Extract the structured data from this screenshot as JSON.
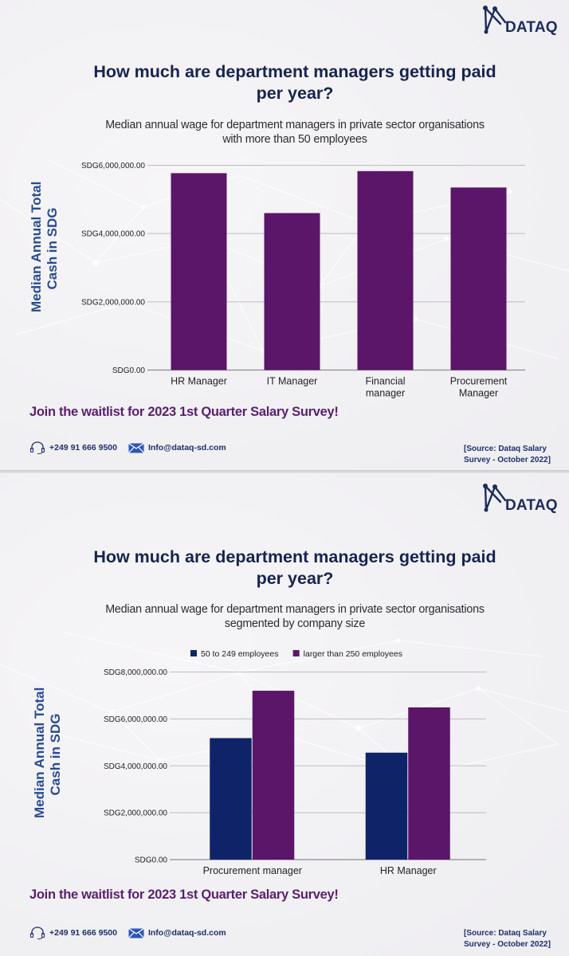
{
  "brand": {
    "logo_text": "DATAQ"
  },
  "panels": [
    {
      "title": "How much are department managers getting paid per year?",
      "subtitle": "Median annual wage for department managers in private sector organisations with more than 50 employees",
      "y_axis_label_line1": "Median Annual Total",
      "y_axis_label_line2": "Cash in SDG",
      "cta": "Join the waitlist for 2023 1st Quarter Salary Survey!",
      "phone": "+249 91 666 9500",
      "email": "Info@dataq-sd.com",
      "source_line1": "[Source: Dataq Salary",
      "source_line2": "Survey - October 2022]"
    },
    {
      "title": "How much are department managers getting paid per year?",
      "subtitle": "Median annual wage for department managers in private sector organisations segmented by company size",
      "y_axis_label_line1": "Median Annual Total",
      "y_axis_label_line2": "Cash in SDG",
      "cta": "Join the waitlist for 2023 1st Quarter Salary Survey!",
      "phone": "+249 91 666 9500",
      "email": "Info@dataq-sd.com",
      "source_line1": "[Source: Dataq Salary",
      "source_line2": "Survey - October 2022]"
    }
  ],
  "colors": {
    "purple": "#5b1569",
    "navy": "#0f2468",
    "title": "#16244f",
    "axis_label": "#2a4b91",
    "cta": "#5a1f6e",
    "grid": "#bdbdc2"
  },
  "chart_data": [
    {
      "type": "bar",
      "title": "How much are department managers getting paid per year?",
      "subtitle": "Median annual wage for department managers in private sector organisations with more than 50 employees",
      "xlabel": "",
      "ylabel": "Median Annual Total Cash in SDG",
      "categories": [
        [
          "HR Manager"
        ],
        [
          "IT Manager"
        ],
        [
          "Financial",
          "manager"
        ],
        [
          "Procurement",
          "Manager"
        ]
      ],
      "values": [
        5770000,
        4600000,
        5830000,
        5350000
      ],
      "ylim": [
        0,
        6000000
      ],
      "yticks": [
        0,
        2000000,
        4000000,
        6000000
      ],
      "ytick_labels": [
        "SDG0.00",
        "SDG2,000,000.00",
        "SDG4,000,000.00",
        "SDG6,000,000.00"
      ],
      "grid": true,
      "legend": null
    },
    {
      "type": "bar",
      "title": "How much are department managers getting paid per year?",
      "subtitle": "Median annual wage for department managers in private sector organisations segmented by company size",
      "xlabel": "",
      "ylabel": "Median Annual Total Cash in SDG",
      "categories": [
        [
          "Procurement manager"
        ],
        [
          "HR Manager"
        ]
      ],
      "series": [
        {
          "name": "50 to 249 employees",
          "color": "#0f2468",
          "values": [
            5180000,
            4560000
          ]
        },
        {
          "name": "larger than 250 employees",
          "color": "#5b1569",
          "values": [
            7200000,
            6490000
          ]
        }
      ],
      "ylim": [
        0,
        8000000
      ],
      "yticks": [
        0,
        2000000,
        4000000,
        6000000,
        8000000
      ],
      "ytick_labels": [
        "SDG0.00",
        "SDG2,000,000.00",
        "SDG4,000,000.00",
        "SDG6,000,000.00",
        "SDG8,000,000.00"
      ],
      "grid": true,
      "legend": "top-center"
    }
  ]
}
